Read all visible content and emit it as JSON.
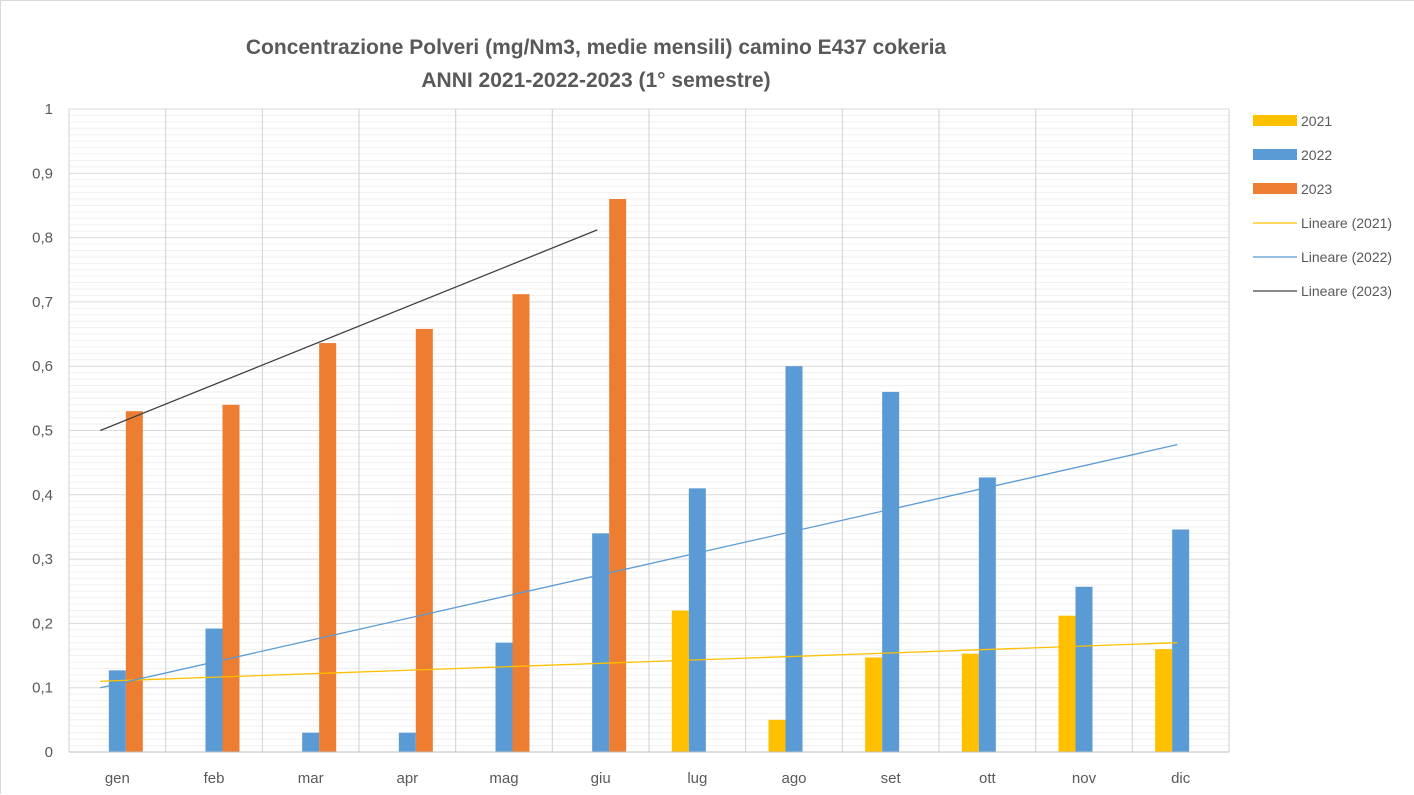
{
  "chart_data": {
    "type": "bar",
    "title": "Concentrazione Polveri (mg/Nm3, medie mensili) camino E437 cokeria",
    "subtitle": "ANNI 2021-2022-2023 (1° semestre)",
    "categories": [
      "gen",
      "feb",
      "mar",
      "apr",
      "mag",
      "giu",
      "lug",
      "ago",
      "set",
      "ott",
      "nov",
      "dic"
    ],
    "series": [
      {
        "name": "2021",
        "color": "#FFC000",
        "values": [
          null,
          null,
          null,
          null,
          null,
          null,
          0.22,
          0.05,
          0.147,
          0.153,
          0.212,
          0.16
        ]
      },
      {
        "name": "2022",
        "color": "#5B9BD5",
        "values": [
          0.127,
          0.192,
          0.03,
          0.03,
          0.17,
          0.34,
          0.41,
          0.6,
          0.56,
          0.427,
          0.257,
          0.346
        ]
      },
      {
        "name": "2023",
        "color": "#ED7D31",
        "values": [
          0.53,
          0.54,
          0.636,
          0.658,
          0.712,
          0.86,
          null,
          null,
          null,
          null,
          null,
          null
        ]
      }
    ],
    "trendlines": [
      {
        "name": "Lineare (2021)",
        "color": "#FFC000",
        "start": 0.11,
        "end": 0.17,
        "from_index": 0,
        "to_index": 11
      },
      {
        "name": "Lineare (2022)",
        "color": "#5B9BD5",
        "start": 0.1,
        "end": 0.478,
        "from_index": 0,
        "to_index": 11
      },
      {
        "name": "Lineare (2023)",
        "color": "#404040",
        "start": 0.5,
        "end": 0.812,
        "from_index": 0,
        "to_index": 5
      }
    ],
    "y_ticks": [
      "0",
      "0,1",
      "0,2",
      "0,3",
      "0,4",
      "0,5",
      "0,6",
      "0,7",
      "0,8",
      "0,9",
      "1"
    ],
    "ylim": [
      0,
      1
    ],
    "grid": true,
    "legend_position": "right"
  }
}
